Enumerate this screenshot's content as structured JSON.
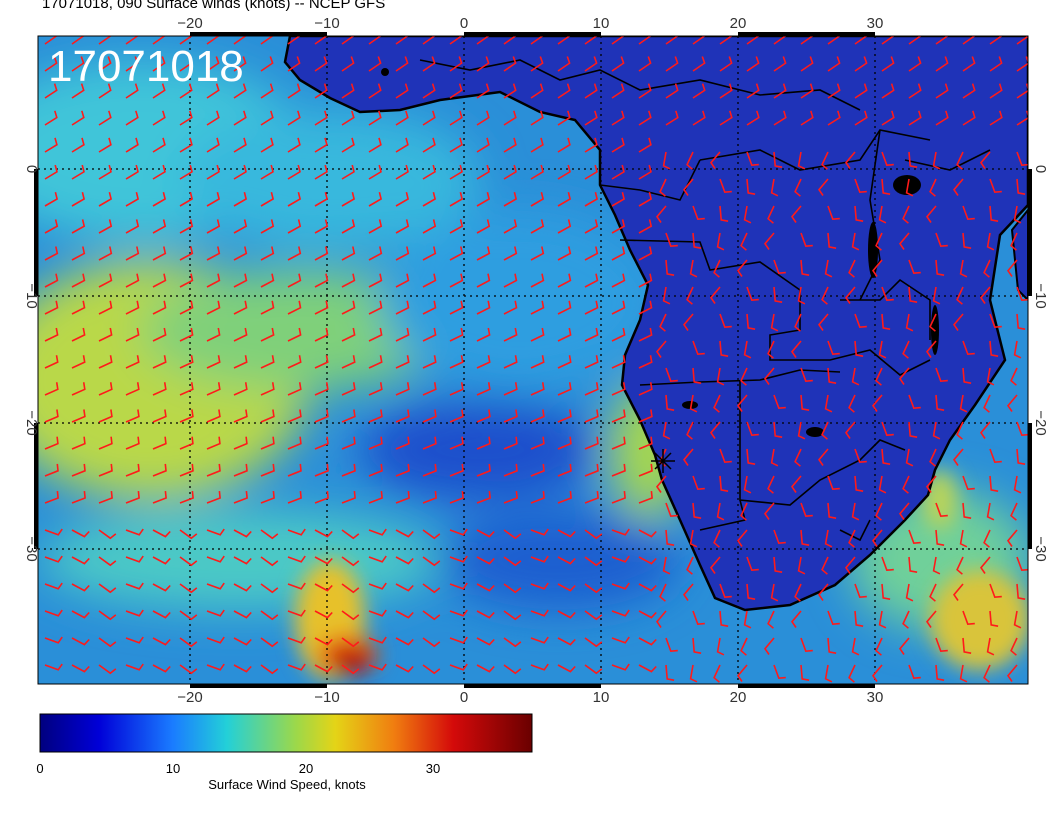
{
  "title": "17071018, 090 Surface winds (knots) -- NCEP GFS",
  "timestamp_stamp": "17071018",
  "axes": {
    "lon_ticks": [
      "−20",
      "−10",
      "0",
      "10",
      "20",
      "30"
    ],
    "lat_ticks": [
      "0",
      "−10",
      "−20",
      "−30"
    ],
    "lon_range": [
      -31,
      41
    ],
    "lat_range": [
      -39.5,
      9.5
    ]
  },
  "colorbar": {
    "label": "Surface Wind Speed, knots",
    "ticks": [
      "0",
      "10",
      "20",
      "30"
    ],
    "range": [
      0,
      37
    ]
  },
  "colors": {
    "ocean_base": "#2a8fd8",
    "land_base": "#1f33b8",
    "trade_wind_band": "#c9d63a",
    "jet_core": "#b30010",
    "barbs": "#ff1a1a",
    "coast": "#000000"
  },
  "marker": {
    "name": "star-marker",
    "lon": 14.5,
    "lat": -23
  }
}
